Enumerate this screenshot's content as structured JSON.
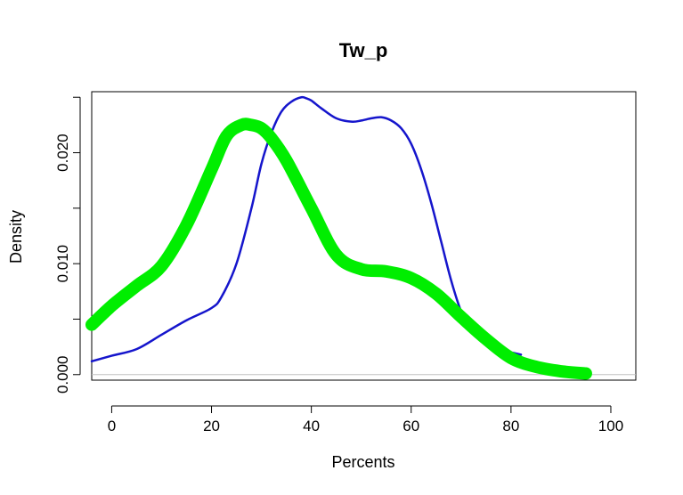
{
  "chart_data": {
    "type": "line",
    "title": "Tw_p",
    "xlabel": "Percents",
    "ylabel": "Density",
    "xlim": [
      -4,
      105
    ],
    "ylim": [
      -0.0005,
      0.0255
    ],
    "x_ticks": [
      0,
      20,
      40,
      60,
      80,
      100
    ],
    "x_tick_labels": [
      "0",
      "20",
      "40",
      "60",
      "80",
      "100"
    ],
    "y_ticks": [
      0.0,
      0.005,
      0.01,
      0.015,
      0.02,
      0.025
    ],
    "y_tick_labels": [
      "0.000",
      "",
      "0.010",
      "",
      "0.020",
      ""
    ],
    "grid": false,
    "baseline": 0,
    "baseline_color": "#c0c0c0",
    "series": [
      {
        "color": "#1515cc",
        "line_width": 2.5,
        "x": [
          -4,
          0,
          5,
          10,
          15,
          20,
          22,
          25,
          28,
          30,
          32,
          34,
          36,
          38,
          39,
          40,
          42,
          45,
          48,
          50,
          52,
          54,
          56,
          58,
          60,
          62,
          64,
          66,
          68,
          70,
          72,
          74,
          76,
          78,
          80,
          82
        ],
        "y": [
          0.0012,
          0.0017,
          0.0023,
          0.0036,
          0.0049,
          0.006,
          0.007,
          0.01,
          0.015,
          0.019,
          0.0218,
          0.0237,
          0.0246,
          0.025,
          0.0249,
          0.0247,
          0.024,
          0.0231,
          0.0228,
          0.0229,
          0.0231,
          0.0232,
          0.0229,
          0.0222,
          0.0208,
          0.0185,
          0.0155,
          0.012,
          0.0085,
          0.0057,
          0.004,
          0.003,
          0.0025,
          0.0022,
          0.002,
          0.0018
        ]
      },
      {
        "color": "#00ee00",
        "line_width": 14,
        "x": [
          -4,
          0,
          5,
          10,
          15,
          20,
          23,
          26,
          28,
          30,
          32,
          35,
          40,
          45,
          50,
          55,
          60,
          65,
          70,
          75,
          80,
          85,
          90,
          95
        ],
        "y": [
          0.0045,
          0.0062,
          0.008,
          0.0098,
          0.0135,
          0.0185,
          0.0215,
          0.0225,
          0.0225,
          0.0222,
          0.0213,
          0.0193,
          0.015,
          0.0108,
          0.0095,
          0.0093,
          0.0087,
          0.0073,
          0.0052,
          0.0032,
          0.0015,
          0.0007,
          0.0003,
          0.0001
        ]
      }
    ]
  }
}
